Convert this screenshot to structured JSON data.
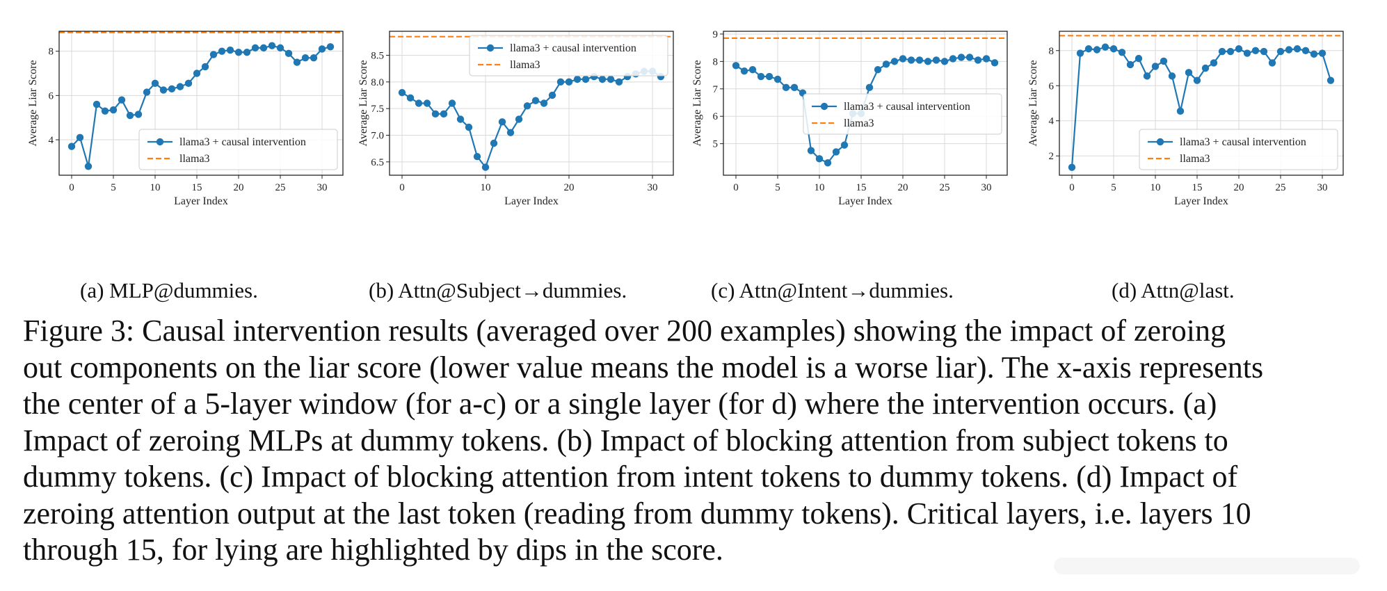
{
  "figure": {
    "subcaptions": [
      "(a) MLP@dummies.",
      "(b) Attn@Subject→dummies.",
      "(c) Attn@Intent→dummies.",
      "(d) Attn@last."
    ],
    "caption_lines": [
      "Figure 3: Causal intervention results (averaged over 200 examples) showing the impact of zeroing",
      "out components on the liar score (lower value means the model is a worse liar). The x-axis represents",
      "the center of a 5-layer window (for a-c) or a single layer (for d) where the intervention occurs. (a)",
      "Impact of zeroing MLPs at dummy tokens. (b) Impact of blocking attention from subject tokens to",
      "dummy tokens. (c) Impact of blocking attention from intent tokens to dummy tokens. (d) Impact of",
      "zeroing attention output at the last token (reading from dummy tokens). Critical layers, i.e. layers 10",
      "through 15, for lying are highlighted by dips in the score."
    ]
  },
  "colors": {
    "series": "#1f77b4",
    "baseline": "#ff7f0e",
    "grid": "#d9d9d9"
  },
  "chart_data": [
    {
      "type": "line",
      "xlabel": "Layer Index",
      "ylabel": "Average Liar Score",
      "xlim": [
        -1.5,
        32.5
      ],
      "ylim": [
        2.4,
        8.9
      ],
      "xticks": [
        0,
        5,
        10,
        15,
        20,
        25,
        30
      ],
      "yticks": [
        4,
        6,
        8
      ],
      "grid": true,
      "legend_position": "lower-right",
      "x": [
        0,
        1,
        2,
        3,
        4,
        5,
        6,
        7,
        8,
        9,
        10,
        11,
        12,
        13,
        14,
        15,
        16,
        17,
        18,
        19,
        20,
        21,
        22,
        23,
        24,
        25,
        26,
        27,
        28,
        29,
        30,
        31
      ],
      "series": [
        {
          "name": "llama3 + causal intervention",
          "style": "line-marker",
          "values": [
            3.7,
            4.1,
            2.8,
            5.6,
            5.3,
            5.35,
            5.8,
            5.1,
            5.15,
            6.15,
            6.55,
            6.25,
            6.3,
            6.4,
            6.55,
            7.0,
            7.3,
            7.85,
            8.0,
            8.05,
            7.95,
            7.95,
            8.15,
            8.15,
            8.25,
            8.15,
            7.9,
            7.5,
            7.7,
            7.7,
            8.1,
            8.2
          ]
        },
        {
          "name": "llama3",
          "style": "dashed",
          "value": 8.85
        }
      ]
    },
    {
      "type": "line",
      "xlabel": "Layer Index",
      "ylabel": "Average Liar Score",
      "xlim": [
        -1.5,
        32.5
      ],
      "ylim": [
        6.25,
        8.95
      ],
      "xticks": [
        0,
        10,
        20,
        30
      ],
      "yticks": [
        6.5,
        7.0,
        7.5,
        8.0,
        8.5
      ],
      "grid": true,
      "legend_position": "upper-right",
      "x": [
        0,
        1,
        2,
        3,
        4,
        5,
        6,
        7,
        8,
        9,
        10,
        11,
        12,
        13,
        14,
        15,
        16,
        17,
        18,
        19,
        20,
        21,
        22,
        23,
        24,
        25,
        26,
        27,
        28,
        29,
        30,
        31
      ],
      "series": [
        {
          "name": "llama3 + causal intervention",
          "style": "line-marker",
          "values": [
            7.8,
            7.7,
            7.6,
            7.6,
            7.4,
            7.4,
            7.6,
            7.3,
            7.15,
            6.6,
            6.4,
            6.85,
            7.25,
            7.05,
            7.3,
            7.55,
            7.65,
            7.6,
            7.75,
            8.0,
            8.0,
            8.05,
            8.05,
            8.1,
            8.05,
            8.05,
            8.0,
            8.1,
            8.15,
            8.2,
            8.2,
            8.1
          ]
        },
        {
          "name": "llama3",
          "style": "dashed",
          "value": 8.85
        }
      ]
    },
    {
      "type": "line",
      "xlabel": "Layer Index",
      "ylabel": "Average Liar Score",
      "xlim": [
        -1.5,
        32.5
      ],
      "ylim": [
        3.85,
        9.1
      ],
      "xticks": [
        0,
        5,
        10,
        15,
        20,
        25,
        30
      ],
      "yticks": [
        5,
        6,
        7,
        8,
        9
      ],
      "grid": true,
      "legend_position": "center",
      "x": [
        0,
        1,
        2,
        3,
        4,
        5,
        6,
        7,
        8,
        9,
        10,
        11,
        12,
        13,
        14,
        15,
        16,
        17,
        18,
        19,
        20,
        21,
        22,
        23,
        24,
        25,
        26,
        27,
        28,
        29,
        30,
        31
      ],
      "series": [
        {
          "name": "llama3 + causal intervention",
          "style": "line-marker",
          "values": [
            7.85,
            7.65,
            7.7,
            7.45,
            7.45,
            7.35,
            7.05,
            7.05,
            6.85,
            4.75,
            4.45,
            4.3,
            4.7,
            4.95,
            6.1,
            6.1,
            7.05,
            7.7,
            7.9,
            8.0,
            8.1,
            8.05,
            8.05,
            8.0,
            8.05,
            8.0,
            8.1,
            8.15,
            8.15,
            8.05,
            8.1,
            7.95
          ]
        },
        {
          "name": "llama3",
          "style": "dashed",
          "value": 8.85
        }
      ]
    },
    {
      "type": "line",
      "xlabel": "Layer Index",
      "ylabel": "Average Liar Score",
      "xlim": [
        -1.5,
        32.5
      ],
      "ylim": [
        0.9,
        9.1
      ],
      "xticks": [
        0,
        5,
        10,
        15,
        20,
        25,
        30
      ],
      "yticks": [
        2,
        4,
        6,
        8
      ],
      "grid": true,
      "legend_position": "lower-right",
      "x": [
        0,
        1,
        2,
        3,
        4,
        5,
        6,
        7,
        8,
        9,
        10,
        11,
        12,
        13,
        14,
        15,
        16,
        17,
        18,
        19,
        20,
        21,
        22,
        23,
        24,
        25,
        26,
        27,
        28,
        29,
        30,
        31
      ],
      "series": [
        {
          "name": "llama3 + causal intervention",
          "style": "line-marker",
          "values": [
            1.35,
            7.85,
            8.1,
            8.05,
            8.2,
            8.1,
            7.9,
            7.2,
            7.55,
            6.55,
            7.1,
            7.4,
            6.55,
            4.55,
            6.75,
            6.3,
            7.0,
            7.3,
            7.95,
            7.95,
            8.1,
            7.85,
            8.0,
            7.95,
            7.3,
            7.95,
            8.05,
            8.1,
            8.0,
            7.8,
            7.85,
            6.3
          ]
        },
        {
          "name": "llama3",
          "style": "dashed",
          "value": 8.85
        }
      ]
    }
  ]
}
